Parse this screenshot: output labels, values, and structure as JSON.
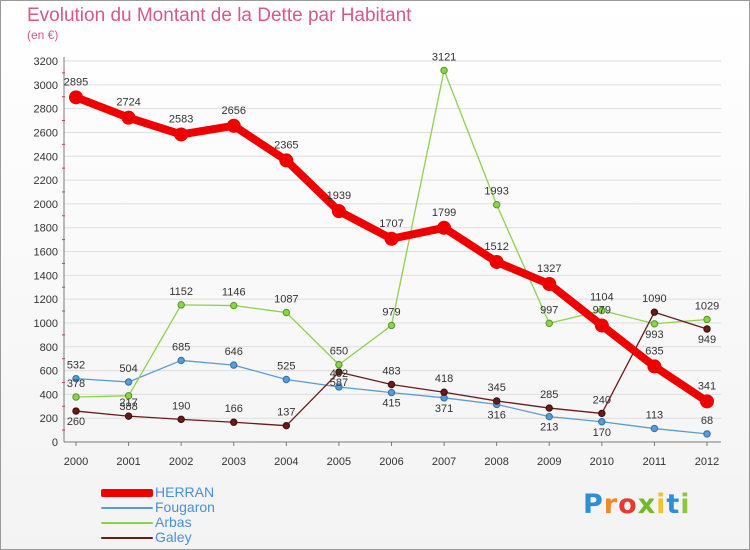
{
  "header": {
    "title": "Evolution du Montant de la Dette par Habitant",
    "subtitle": "(en €)"
  },
  "logo": {
    "letters": [
      "P",
      "r",
      "o",
      "x",
      "i",
      "t",
      "i"
    ],
    "colors": [
      "#2e8fd6",
      "#f0892b",
      "#e8392e",
      "#76b82a",
      "#f2c12e",
      "#2e8fd6",
      "#8dc63f"
    ]
  },
  "colors": {
    "HERRAN": "#ee0000",
    "Fougaron": "#5b9bd5",
    "Arbas": "#8fd14f",
    "Galey": "#6b1a1a",
    "text": "#333333",
    "axis": "#7a7a7a"
  },
  "chart_data": {
    "type": "line",
    "title": "Evolution du Montant de la Dette par Habitant",
    "subtitle": "(en €)",
    "xlabel": "",
    "ylabel": "",
    "x": [
      "2000",
      "2001",
      "2002",
      "2003",
      "2004",
      "2005",
      "2006",
      "2007",
      "2008",
      "2009",
      "2010",
      "2011",
      "2012"
    ],
    "ylim": [
      0,
      3200
    ],
    "yticks": [
      0,
      200,
      400,
      600,
      800,
      1000,
      1200,
      1400,
      1600,
      1800,
      2000,
      2200,
      2400,
      2600,
      2800,
      3000,
      3200
    ],
    "grid": "horizontal",
    "legend_position": "bottom-left",
    "series": [
      {
        "name": "HERRAN",
        "values": [
          2895,
          2724,
          2583,
          2656,
          2365,
          1939,
          1707,
          1799,
          1512,
          1327,
          979,
          635,
          341
        ]
      },
      {
        "name": "Fougaron",
        "values": [
          532,
          504,
          685,
          646,
          525,
          462,
          415,
          371,
          316,
          213,
          170,
          113,
          68
        ]
      },
      {
        "name": "Arbas",
        "values": [
          378,
          388,
          1152,
          1146,
          1087,
          650,
          979,
          3121,
          1993,
          997,
          1104,
          993,
          1029
        ]
      },
      {
        "name": "Galey",
        "values": [
          260,
          217,
          190,
          166,
          137,
          587,
          483,
          418,
          345,
          285,
          240,
          1090,
          949
        ]
      }
    ]
  }
}
